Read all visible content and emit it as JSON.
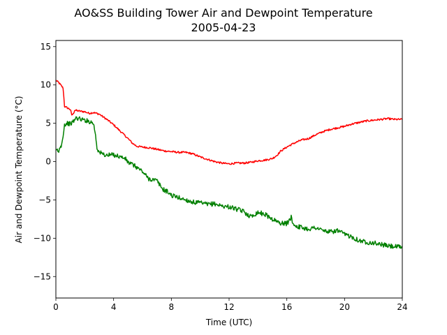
{
  "chart_data": {
    "type": "line",
    "title": "AO&SS Building Tower Air and Dewpoint Temperature",
    "subtitle": "2005-04-23",
    "xlabel": "Time (UTC)",
    "ylabel": "Air and Dewpoint Temperature (°C)",
    "xlim": [
      0,
      24
    ],
    "ylim": [
      -17.8,
      15.8
    ],
    "xticks": [
      0,
      4,
      8,
      12,
      16,
      20,
      24
    ],
    "yticks": [
      -15,
      -10,
      -5,
      0,
      5,
      10,
      15
    ],
    "grid": false,
    "series": [
      {
        "color": "#ff0000",
        "points": [
          [
            0.0,
            10.6
          ],
          [
            0.2,
            10.3
          ],
          [
            0.5,
            9.6
          ],
          [
            0.6,
            7.2
          ],
          [
            0.8,
            7.0
          ],
          [
            1.0,
            6.8
          ],
          [
            1.1,
            6.1
          ],
          [
            1.2,
            6.2
          ],
          [
            1.3,
            6.7
          ],
          [
            1.6,
            6.6
          ],
          [
            2.0,
            6.5
          ],
          [
            2.3,
            6.3
          ],
          [
            2.6,
            6.4
          ],
          [
            3.0,
            6.2
          ],
          [
            3.3,
            5.8
          ],
          [
            3.6,
            5.4
          ],
          [
            4.0,
            4.8
          ],
          [
            4.5,
            3.9
          ],
          [
            5.0,
            3.0
          ],
          [
            5.3,
            2.4
          ],
          [
            5.6,
            2.0
          ],
          [
            6.0,
            1.9
          ],
          [
            6.5,
            1.8
          ],
          [
            7.0,
            1.6
          ],
          [
            7.5,
            1.4
          ],
          [
            8.0,
            1.3
          ],
          [
            8.5,
            1.2
          ],
          [
            9.0,
            1.2
          ],
          [
            9.5,
            1.0
          ],
          [
            10.0,
            0.6
          ],
          [
            10.5,
            0.3
          ],
          [
            11.0,
            0.0
          ],
          [
            11.5,
            -0.2
          ],
          [
            12.0,
            -0.3
          ],
          [
            12.5,
            -0.2
          ],
          [
            13.0,
            -0.2
          ],
          [
            13.5,
            -0.1
          ],
          [
            14.0,
            0.1
          ],
          [
            14.5,
            0.2
          ],
          [
            15.0,
            0.4
          ],
          [
            15.3,
            0.8
          ],
          [
            15.6,
            1.4
          ],
          [
            16.0,
            1.9
          ],
          [
            16.5,
            2.4
          ],
          [
            17.0,
            2.8
          ],
          [
            17.5,
            3.0
          ],
          [
            18.0,
            3.5
          ],
          [
            18.5,
            3.9
          ],
          [
            19.0,
            4.2
          ],
          [
            19.5,
            4.4
          ],
          [
            20.0,
            4.6
          ],
          [
            20.5,
            4.9
          ],
          [
            21.0,
            5.1
          ],
          [
            21.5,
            5.3
          ],
          [
            22.0,
            5.4
          ],
          [
            22.5,
            5.5
          ],
          [
            23.0,
            5.6
          ],
          [
            23.5,
            5.5
          ],
          [
            24.0,
            5.5
          ]
        ]
      },
      {
        "color": "#008000",
        "points": [
          [
            0.0,
            1.3
          ],
          [
            0.1,
            1.5
          ],
          [
            0.2,
            1.2
          ],
          [
            0.3,
            2.0
          ],
          [
            0.4,
            2.2
          ],
          [
            0.5,
            3.5
          ],
          [
            0.6,
            4.8
          ],
          [
            0.8,
            5.0
          ],
          [
            1.0,
            4.9
          ],
          [
            1.2,
            5.2
          ],
          [
            1.4,
            5.7
          ],
          [
            1.6,
            5.6
          ],
          [
            2.0,
            5.4
          ],
          [
            2.4,
            5.2
          ],
          [
            2.6,
            5.0
          ],
          [
            2.75,
            3.5
          ],
          [
            2.85,
            1.8
          ],
          [
            3.0,
            1.2
          ],
          [
            3.5,
            0.8
          ],
          [
            4.0,
            0.9
          ],
          [
            4.5,
            0.6
          ],
          [
            4.8,
            0.4
          ],
          [
            5.0,
            -0.1
          ],
          [
            5.5,
            -0.6
          ],
          [
            6.0,
            -1.3
          ],
          [
            6.4,
            -2.2
          ],
          [
            7.0,
            -2.5
          ],
          [
            7.4,
            -3.6
          ],
          [
            7.8,
            -4.0
          ],
          [
            8.0,
            -4.4
          ],
          [
            8.5,
            -4.7
          ],
          [
            9.0,
            -5.0
          ],
          [
            9.5,
            -5.3
          ],
          [
            10.0,
            -5.4
          ],
          [
            10.5,
            -5.6
          ],
          [
            11.0,
            -5.5
          ],
          [
            11.5,
            -5.8
          ],
          [
            12.0,
            -5.9
          ],
          [
            12.5,
            -6.2
          ],
          [
            13.0,
            -6.5
          ],
          [
            13.5,
            -7.2
          ],
          [
            14.0,
            -6.6
          ],
          [
            14.5,
            -6.9
          ],
          [
            15.0,
            -7.5
          ],
          [
            15.5,
            -8.0
          ],
          [
            16.0,
            -8.1
          ],
          [
            16.3,
            -7.3
          ],
          [
            16.5,
            -8.3
          ],
          [
            17.0,
            -8.6
          ],
          [
            17.5,
            -8.8
          ],
          [
            18.0,
            -8.6
          ],
          [
            18.5,
            -9.0
          ],
          [
            19.0,
            -9.2
          ],
          [
            19.5,
            -9.0
          ],
          [
            20.0,
            -9.5
          ],
          [
            20.5,
            -9.8
          ],
          [
            21.0,
            -10.3
          ],
          [
            21.5,
            -10.5
          ],
          [
            22.0,
            -10.6
          ],
          [
            22.5,
            -10.8
          ],
          [
            23.0,
            -11.0
          ],
          [
            23.5,
            -11.1
          ],
          [
            24.0,
            -11.2
          ]
        ]
      }
    ]
  }
}
